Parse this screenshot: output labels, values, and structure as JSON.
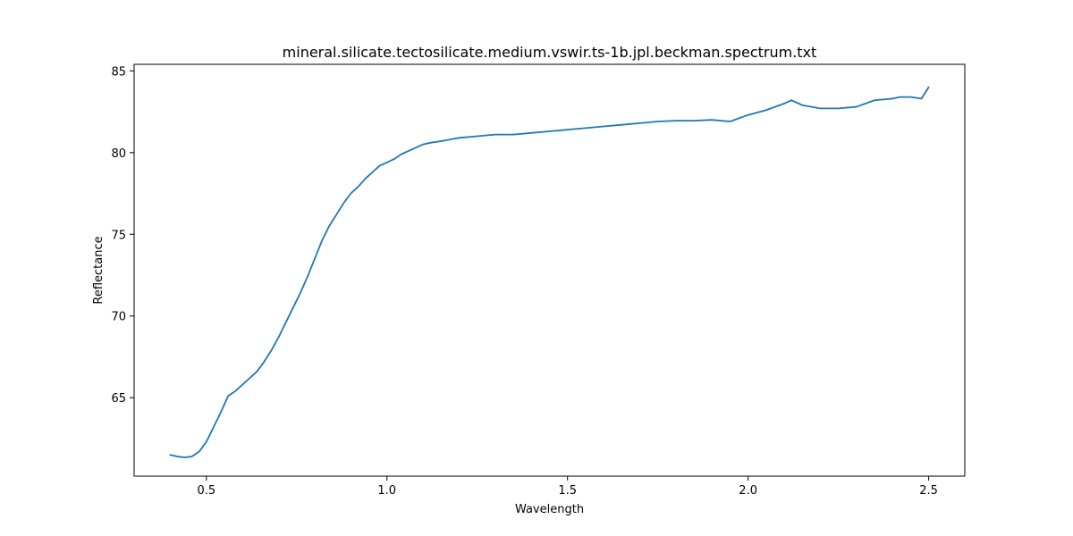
{
  "chart_data": {
    "type": "line",
    "title": "mineral.silicate.tectosilicate.medium.vswir.ts-1b.jpl.beckman.spectrum.txt",
    "xlabel": "Wavelength",
    "ylabel": "Reflectance",
    "xlim": [
      0.3,
      2.6
    ],
    "ylim": [
      60.2,
      85.4
    ],
    "xticks": [
      0.5,
      1.0,
      1.5,
      2.0,
      2.5
    ],
    "xtick_labels": [
      "0.5",
      "1.0",
      "1.5",
      "2.0",
      "2.5"
    ],
    "yticks": [
      65,
      70,
      75,
      80,
      85
    ],
    "ytick_labels": [
      "65",
      "70",
      "75",
      "80",
      "85"
    ],
    "grid": false,
    "line_color": "#1f77b4",
    "series": [
      {
        "x": [
          0.4,
          0.42,
          0.44,
          0.46,
          0.48,
          0.5,
          0.52,
          0.54,
          0.56,
          0.58,
          0.6,
          0.62,
          0.64,
          0.66,
          0.68,
          0.7,
          0.72,
          0.74,
          0.76,
          0.78,
          0.8,
          0.82,
          0.84,
          0.86,
          0.88,
          0.9,
          0.92,
          0.94,
          0.96,
          0.98,
          1.0,
          1.02,
          1.04,
          1.06,
          1.08,
          1.1,
          1.12,
          1.15,
          1.2,
          1.25,
          1.3,
          1.35,
          1.4,
          1.45,
          1.5,
          1.55,
          1.6,
          1.65,
          1.7,
          1.75,
          1.8,
          1.85,
          1.9,
          1.95,
          2.0,
          2.05,
          2.1,
          2.12,
          2.15,
          2.2,
          2.25,
          2.3,
          2.35,
          2.4,
          2.42,
          2.45,
          2.48,
          2.5
        ],
        "y": [
          61.5,
          61.4,
          61.35,
          61.4,
          61.7,
          62.3,
          63.2,
          64.1,
          65.1,
          65.4,
          65.8,
          66.2,
          66.6,
          67.2,
          67.9,
          68.7,
          69.6,
          70.5,
          71.4,
          72.4,
          73.5,
          74.6,
          75.5,
          76.2,
          76.9,
          77.5,
          77.9,
          78.4,
          78.8,
          79.2,
          79.4,
          79.6,
          79.9,
          80.1,
          80.3,
          80.5,
          80.6,
          80.7,
          80.9,
          81.0,
          81.1,
          81.1,
          81.2,
          81.3,
          81.4,
          81.5,
          81.6,
          81.7,
          81.8,
          81.9,
          81.95,
          81.95,
          82.0,
          81.9,
          82.3,
          82.6,
          83.0,
          83.2,
          82.9,
          82.7,
          82.7,
          82.8,
          83.2,
          83.3,
          83.4,
          83.4,
          83.3,
          84.0
        ]
      }
    ]
  }
}
